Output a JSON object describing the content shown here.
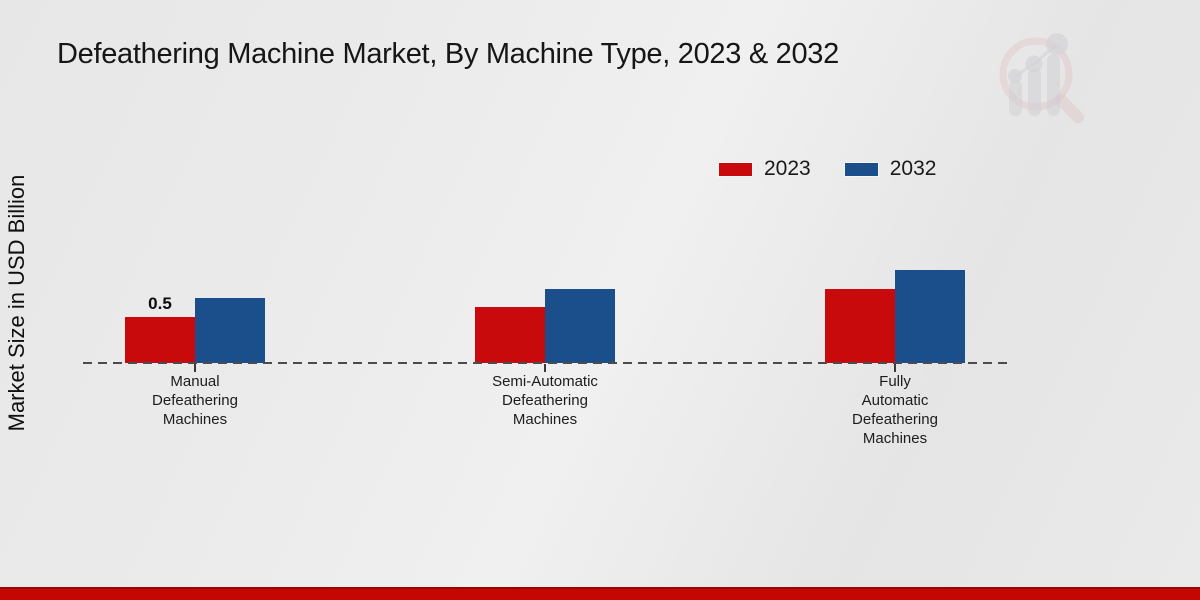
{
  "title": "Defeathering Machine Market, By Machine Type, 2023 & 2032",
  "legend": {
    "position": "top-right",
    "items": [
      {
        "label": "2023",
        "color": "#c80a0d"
      },
      {
        "label": "2032",
        "color": "#1b4f8c"
      }
    ]
  },
  "chart_data": {
    "type": "bar",
    "title": "Defeathering Machine Market, By Machine Type, 2023 & 2032",
    "ylabel": "Market Size in USD Billion",
    "xlabel": "",
    "categories": [
      "Manual\nDefeathering\nMachines",
      "Semi-Automatic\nDefeathering\nMachines",
      "Fully\nAutomatic\nDefeathering\nMachines"
    ],
    "series": [
      {
        "name": "2023",
        "color": "#c80a0d",
        "values": [
          0.5,
          0.6,
          0.8
        ]
      },
      {
        "name": "2032",
        "color": "#1b4f8c",
        "values": [
          0.7,
          0.8,
          1.0
        ]
      }
    ],
    "annotations": [
      {
        "series_index": 0,
        "category_index": 0,
        "text": "0.5"
      }
    ],
    "baseline_style": "dashed",
    "grid": false,
    "ylim": [
      0,
      1.1
    ],
    "legend_position": "top-right"
  },
  "branding": {
    "watermark_icon": "magnifier-bar-chart-logo",
    "footer_bar_color": "#c40703"
  }
}
